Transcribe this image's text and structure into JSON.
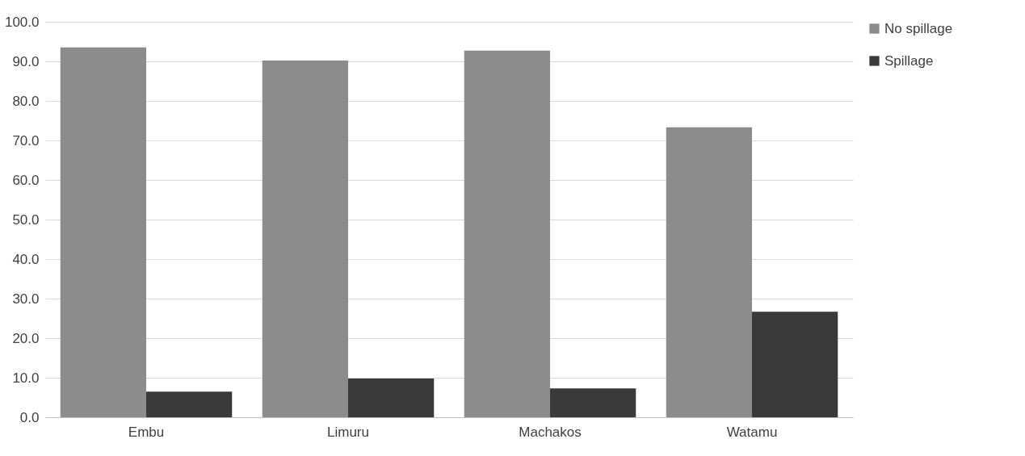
{
  "chart_data": {
    "type": "bar",
    "categories": [
      "Embu",
      "Limuru",
      "Machakos",
      "Watamu"
    ],
    "series": [
      {
        "name": "No spillage",
        "color": "#8c8c8c",
        "values": [
          93.5,
          90.2,
          92.7,
          73.3
        ]
      },
      {
        "name": "Spillage",
        "color": "#3a3a3a",
        "values": [
          6.5,
          9.8,
          7.3,
          26.7
        ]
      }
    ],
    "ylim": [
      0,
      100
    ],
    "yticks": [
      {
        "value": 0,
        "label": "0.0"
      },
      {
        "value": 10,
        "label": "10.0"
      },
      {
        "value": 20,
        "label": "20.0"
      },
      {
        "value": 30,
        "label": "30.0"
      },
      {
        "value": 40,
        "label": "40.0"
      },
      {
        "value": 50,
        "label": "50.0"
      },
      {
        "value": 60,
        "label": "60.0"
      },
      {
        "value": 70,
        "label": "70.0"
      },
      {
        "value": 80,
        "label": "80.0"
      },
      {
        "value": 90,
        "label": "90.0"
      },
      {
        "value": 100,
        "label": "100.0"
      }
    ],
    "grid": "y",
    "legend": "right"
  }
}
